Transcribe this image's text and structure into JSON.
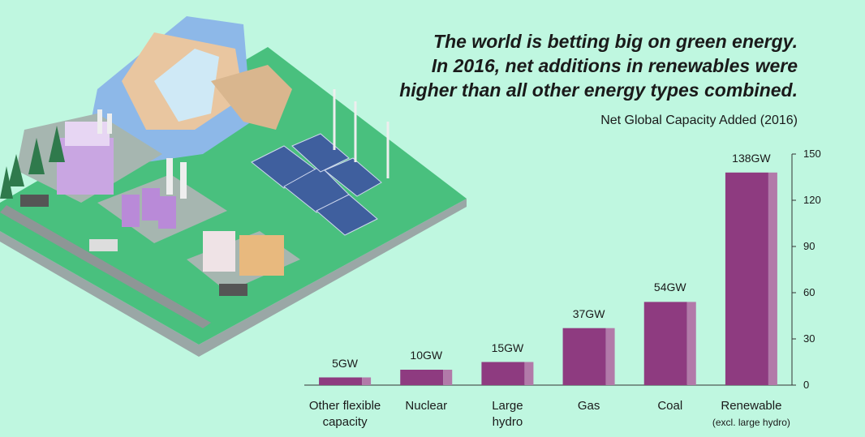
{
  "chart_data": {
    "type": "bar",
    "title": "The world is betting big on green energy.\nIn 2016, net additions in renewables were\nhigher than all other energy types combined.",
    "subtitle": "Net Global Capacity Added (2016)",
    "categories": [
      "Other flexible\ncapacity",
      "Nuclear",
      "Large\nhydro",
      "Gas",
      "Coal",
      "Renewable"
    ],
    "category_note": "(excl. large hydro)",
    "values": [
      5,
      10,
      15,
      37,
      54,
      138
    ],
    "value_labels": [
      "5GW",
      "10GW",
      "15GW",
      "37GW",
      "54GW",
      "138GW"
    ],
    "color": "#8e3b80",
    "side_color": "#b27aa9",
    "ylim": [
      0,
      150
    ],
    "yticks": [
      0,
      30,
      60,
      90,
      120,
      150
    ]
  }
}
